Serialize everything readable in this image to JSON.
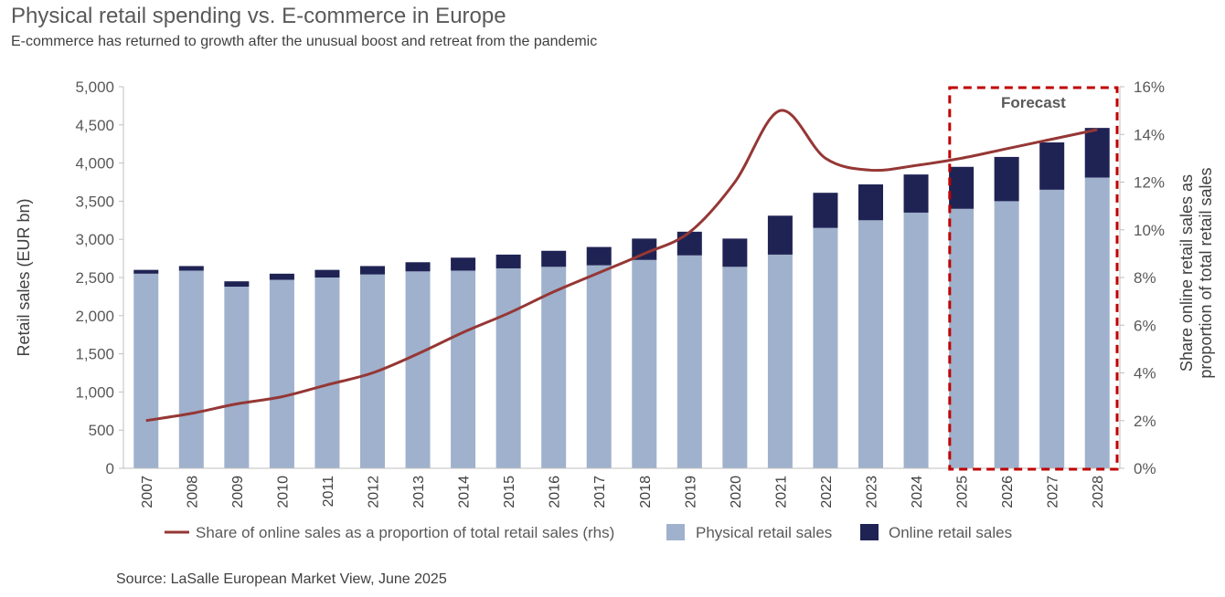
{
  "title": "Physical retail spending vs. E-commerce in Europe",
  "subtitle": "E-commerce has returned to growth after the unusual boost and retreat from the pandemic",
  "source": "Source: LaSalle European Market View, June 2025",
  "colors": {
    "physical": "#9fb1cc",
    "online": "#1f2354",
    "share_line": "#953735",
    "forecast_box": "#c00000",
    "text": "#595959"
  },
  "chart_data": {
    "type": "bar",
    "stacked": true,
    "categories": [
      "2007",
      "2008",
      "2009",
      "2010",
      "2011",
      "2012",
      "2013",
      "2014",
      "2015",
      "2016",
      "2017",
      "2018",
      "2019",
      "2020",
      "2021",
      "2022",
      "2023",
      "2024",
      "2025",
      "2026",
      "2027",
      "2028"
    ],
    "series": [
      {
        "name": "Physical retail sales",
        "type": "bar",
        "axis": "left",
        "values": [
          2550,
          2590,
          2380,
          2470,
          2500,
          2540,
          2580,
          2590,
          2620,
          2640,
          2660,
          2730,
          2790,
          2640,
          2800,
          3150,
          3250,
          3350,
          3400,
          3500,
          3650,
          3810
        ]
      },
      {
        "name": "Online retail sales",
        "type": "bar",
        "axis": "left",
        "values": [
          50,
          60,
          70,
          80,
          100,
          110,
          120,
          170,
          180,
          210,
          240,
          280,
          310,
          370,
          510,
          460,
          470,
          500,
          550,
          580,
          620,
          650
        ]
      },
      {
        "name": "Share of online sales as a proportion of total retail sales (rhs)",
        "type": "line",
        "axis": "right",
        "values": [
          2.0,
          2.3,
          2.7,
          3.0,
          3.5,
          4.0,
          4.8,
          5.7,
          6.5,
          7.4,
          8.2,
          9.0,
          9.9,
          12.0,
          15.0,
          13.0,
          12.5,
          12.7,
          13.0,
          13.4,
          13.8,
          14.2
        ]
      }
    ],
    "ylabel": "Retail sales (EUR bn)",
    "ylabel_right": "Share online retail sales as proportion of total retail sales",
    "ylim": [
      0,
      5000
    ],
    "y_ticks": [
      "0",
      "500",
      "1,000",
      "1,500",
      "2,000",
      "2,500",
      "3,000",
      "3,500",
      "4,000",
      "4,500",
      "5,000"
    ],
    "ylim_right": [
      0,
      16
    ],
    "y_ticks_right": [
      "0%",
      "2%",
      "4%",
      "6%",
      "8%",
      "10%",
      "12%",
      "14%",
      "16%"
    ],
    "forecast": {
      "label": "Forecast",
      "from": "2025",
      "to": "2028"
    },
    "legend_position": "bottom",
    "grid": false
  }
}
